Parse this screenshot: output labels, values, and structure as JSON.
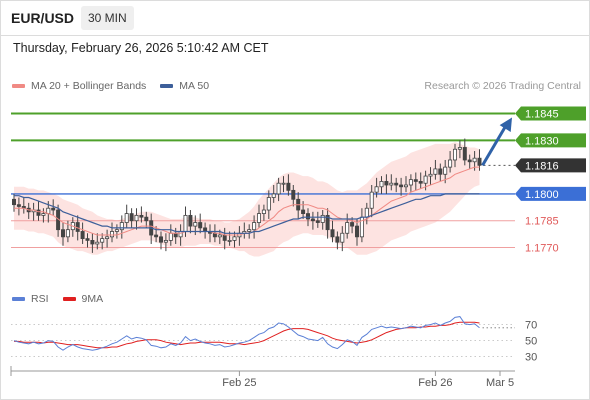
{
  "header": {
    "symbol": "EUR/USD",
    "timeframe": "30 MIN",
    "datetime": "Thursday, February 26, 2026 5:10:42 AM CET"
  },
  "legend": {
    "ma20_label": "MA 20 + Bollinger Bands",
    "ma50_label": "MA 50",
    "credit": "Research © 2026 Trading Central"
  },
  "rsi_legend": {
    "rsi_label": "RSI",
    "ma_label": "9MA"
  },
  "colors": {
    "resistance": "#4ea02a",
    "current": "#333333",
    "pivot": "#3b6fd6",
    "support": "#e05a5a",
    "ma20": "#f08a84",
    "ma50": "#3d5f9a",
    "bollinger_fill": "#fde3e1",
    "candle": "#444444",
    "projection_arrow": "#2f62a8",
    "rsi": "#5b80d6",
    "rsi_ma": "#e02020"
  },
  "chart_data": [
    {
      "type": "candlestick",
      "title": "",
      "ylim": [
        1.1758,
        1.1852
      ],
      "x_ticks": [
        "Feb 25",
        "Feb 26",
        "Mar 5"
      ],
      "levels": [
        {
          "value": 1.1845,
          "label": "1.1845",
          "kind": "resistance",
          "style": "box"
        },
        {
          "value": 1.183,
          "label": "1.1830",
          "kind": "resistance",
          "style": "box"
        },
        {
          "value": 1.1816,
          "label": "1.1816",
          "kind": "current",
          "style": "box"
        },
        {
          "value": 1.18,
          "label": "1.1800",
          "kind": "pivot",
          "style": "box"
        },
        {
          "value": 1.1785,
          "label": "1.1785",
          "kind": "support",
          "style": "text"
        },
        {
          "value": 1.177,
          "label": "1.1770",
          "kind": "support",
          "style": "text"
        }
      ],
      "close": [
        1.1794,
        1.1793,
        1.1792,
        1.179,
        1.1791,
        1.1788,
        1.1789,
        1.1792,
        1.1791,
        1.178,
        1.1776,
        1.178,
        1.1784,
        1.1779,
        1.1775,
        1.1774,
        1.1772,
        1.1773,
        1.1775,
        1.1776,
        1.1779,
        1.178,
        1.1784,
        1.1789,
        1.1785,
        1.1788,
        1.1787,
        1.1785,
        1.1777,
        1.1776,
        1.1773,
        1.1774,
        1.1778,
        1.1776,
        1.1779,
        1.1788,
        1.1782,
        1.1784,
        1.1781,
        1.1779,
        1.1778,
        1.1776,
        1.1777,
        1.1774,
        1.1774,
        1.1776,
        1.1778,
        1.1779,
        1.178,
        1.1784,
        1.1789,
        1.1791,
        1.1798,
        1.18,
        1.1806,
        1.1806,
        1.1802,
        1.1797,
        1.1791,
        1.1789,
        1.1786,
        1.1785,
        1.1784,
        1.1788,
        1.178,
        1.1776,
        1.1773,
        1.1778,
        1.1784,
        1.1782,
        1.1776,
        1.1787,
        1.1792,
        1.1801,
        1.1804,
        1.1807,
        1.1805,
        1.1806,
        1.1805,
        1.1804,
        1.1805,
        1.1808,
        1.1807,
        1.1806,
        1.181,
        1.1811,
        1.1814,
        1.1811,
        1.1815,
        1.1819,
        1.1825,
        1.1826,
        1.1819,
        1.1818,
        1.182,
        1.1816
      ],
      "ma20": [
        1.1792,
        1.1792,
        1.1792,
        1.1791,
        1.1791,
        1.179,
        1.179,
        1.1789,
        1.1788,
        1.1786,
        1.1784,
        1.1783,
        1.1782,
        1.1781,
        1.178,
        1.1779,
        1.1778,
        1.1777,
        1.1777,
        1.1777,
        1.1777,
        1.1777,
        1.1778,
        1.1779,
        1.178,
        1.1781,
        1.1782,
        1.1782,
        1.1782,
        1.1781,
        1.178,
        1.1779,
        1.1778,
        1.1778,
        1.1778,
        1.1779,
        1.1779,
        1.1779,
        1.1779,
        1.1779,
        1.1779,
        1.1778,
        1.1778,
        1.1777,
        1.1777,
        1.1777,
        1.1777,
        1.1778,
        1.1778,
        1.1779,
        1.1781,
        1.1783,
        1.1785,
        1.1787,
        1.179,
        1.1792,
        1.1793,
        1.1794,
        1.1794,
        1.1794,
        1.1794,
        1.1793,
        1.1792,
        1.1792,
        1.1791,
        1.1789,
        1.1787,
        1.1786,
        1.1786,
        1.1785,
        1.1784,
        1.1785,
        1.1786,
        1.1788,
        1.179,
        1.1792,
        1.1794,
        1.1796,
        1.1797,
        1.1798,
        1.1799,
        1.1801,
        1.1802,
        1.1803,
        1.1804,
        1.1805,
        1.1806,
        1.1807,
        1.1808,
        1.1809,
        1.1811,
        1.1812,
        1.1813,
        1.1814,
        1.1815,
        1.1815
      ],
      "ma50": [
        1.1799,
        1.1799,
        1.1798,
        1.1798,
        1.1797,
        1.1796,
        1.1795,
        1.1794,
        1.1793,
        1.1792,
        1.179,
        1.1789,
        1.1788,
        1.1787,
        1.1786,
        1.1785,
        1.1784,
        1.1783,
        1.1782,
        1.1782,
        1.1781,
        1.1781,
        1.1781,
        1.1781,
        1.1781,
        1.1781,
        1.1781,
        1.1781,
        1.1781,
        1.178,
        1.178,
        1.178,
        1.178,
        1.1779,
        1.1779,
        1.1779,
        1.1779,
        1.1779,
        1.1779,
        1.1779,
        1.1779,
        1.1779,
        1.1779,
        1.1778,
        1.1778,
        1.1778,
        1.1778,
        1.1778,
        1.1778,
        1.1779,
        1.1779,
        1.178,
        1.1781,
        1.1782,
        1.1783,
        1.1784,
        1.1785,
        1.1786,
        1.1786,
        1.1787,
        1.1787,
        1.1787,
        1.1787,
        1.1787,
        1.1787,
        1.1786,
        1.1786,
        1.1786,
        1.1786,
        1.1786,
        1.1786,
        1.1787,
        1.1787,
        1.1788,
        1.1789,
        1.179,
        1.1791,
        1.1792,
        1.1793,
        1.1794,
        1.1795,
        1.1796,
        1.1797,
        1.1797,
        1.1798,
        1.1799,
        1.1799,
        1.1799,
        1.18,
        1.18,
        1.18,
        1.18,
        1.18,
        1.18,
        1.18,
        1.18
      ],
      "bollinger_width": [
        0.0012,
        0.0012,
        0.0012,
        0.0012,
        0.0012,
        0.0012,
        0.0012,
        0.0012,
        0.0012,
        0.0013,
        0.0013,
        0.0013,
        0.0013,
        0.0013,
        0.0012,
        0.0012,
        0.0012,
        0.0011,
        0.001,
        0.0009,
        0.0009,
        0.0008,
        0.0008,
        0.0008,
        0.0008,
        0.0008,
        0.0008,
        0.0008,
        0.0008,
        0.0008,
        0.0008,
        0.0008,
        0.0008,
        0.0008,
        0.0008,
        0.0008,
        0.0008,
        0.0008,
        0.0007,
        0.0007,
        0.0007,
        0.0007,
        0.0007,
        0.0007,
        0.0007,
        0.0008,
        0.0009,
        0.001,
        0.0012,
        0.0014,
        0.0016,
        0.0017,
        0.0018,
        0.0019,
        0.0019,
        0.0019,
        0.0019,
        0.0018,
        0.0017,
        0.0016,
        0.0016,
        0.0016,
        0.0015,
        0.0015,
        0.0015,
        0.0015,
        0.0015,
        0.0015,
        0.0016,
        0.0017,
        0.0018,
        0.0019,
        0.002,
        0.0021,
        0.0022,
        0.0022,
        0.0022,
        0.0022,
        0.0022,
        0.0022,
        0.0022,
        0.0022,
        0.0022,
        0.0022,
        0.0022,
        0.0022,
        0.0022,
        0.0021,
        0.002,
        0.0019,
        0.0018,
        0.0016,
        0.0014,
        0.0012,
        0.0011,
        0.001
      ],
      "projection": {
        "from_index": 95,
        "from": 1.1816,
        "to": 1.1845
      }
    },
    {
      "type": "line",
      "ylim": [
        22,
        82
      ],
      "y_ticks": [
        70,
        50,
        30
      ],
      "series": [
        {
          "name": "RSI",
          "values": [
            50,
            48,
            47,
            46,
            48,
            46,
            47,
            50,
            49,
            42,
            38,
            42,
            45,
            42,
            40,
            39,
            38,
            39,
            41,
            43,
            46,
            48,
            52,
            56,
            52,
            54,
            53,
            51,
            44,
            43,
            41,
            42,
            46,
            44,
            47,
            55,
            50,
            52,
            49,
            47,
            46,
            44,
            45,
            42,
            43,
            45,
            47,
            48,
            50,
            54,
            58,
            60,
            65,
            67,
            72,
            71,
            67,
            62,
            57,
            55,
            52,
            51,
            50,
            54,
            46,
            42,
            40,
            45,
            51,
            49,
            44,
            54,
            58,
            64,
            66,
            68,
            66,
            67,
            66,
            65,
            66,
            68,
            67,
            66,
            69,
            70,
            72,
            69,
            72,
            74,
            79,
            80,
            71,
            70,
            71,
            66
          ]
        },
        {
          "name": "9MA",
          "values": [
            49,
            49,
            48,
            48,
            48,
            48,
            47,
            48,
            48,
            47,
            46,
            45,
            45,
            45,
            44,
            43,
            42,
            41,
            41,
            41,
            42,
            42,
            44,
            46,
            47,
            49,
            50,
            51,
            51,
            51,
            50,
            48,
            47,
            46,
            45,
            46,
            47,
            47,
            48,
            48,
            48,
            48,
            48,
            47,
            46,
            46,
            46,
            45,
            46,
            47,
            48,
            50,
            53,
            56,
            59,
            62,
            64,
            65,
            65,
            65,
            64,
            62,
            60,
            58,
            56,
            53,
            51,
            50,
            49,
            48,
            47,
            48,
            49,
            51,
            54,
            57,
            60,
            62,
            64,
            65,
            66,
            66,
            66,
            67,
            67,
            68,
            68,
            69,
            69,
            70,
            72,
            73,
            73,
            73,
            73,
            72
          ]
        }
      ]
    }
  ]
}
